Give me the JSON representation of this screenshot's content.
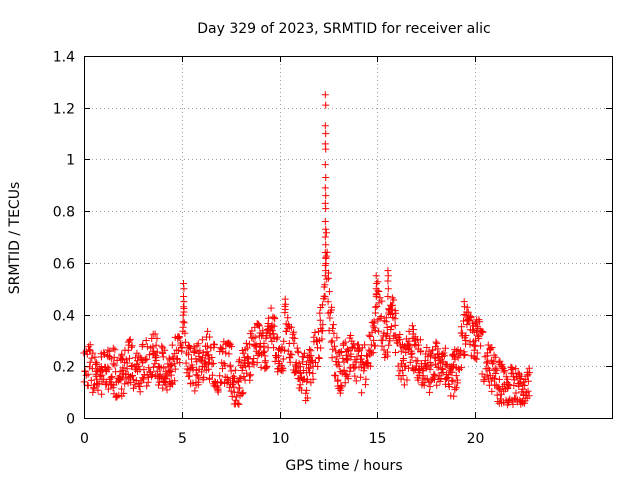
{
  "chart_data": {
    "type": "scatter",
    "title": "Day 329 of 2023, SRMTID for receiver alic",
    "xlabel": "GPS time / hours",
    "ylabel": "SRMTID / TECUs",
    "xlim": [
      0,
      27
    ],
    "ylim": [
      0,
      1.4
    ],
    "grid": true,
    "legend": "none",
    "marker": "plus",
    "color": "#ff0000",
    "x_ticks": [
      0,
      5,
      10,
      15,
      20
    ],
    "x_tick_labels": [
      "0",
      "5",
      "10",
      "15",
      "20"
    ],
    "y_ticks": [
      0,
      0.2,
      0.4,
      0.6,
      0.8,
      1.0,
      1.2,
      1.4
    ],
    "y_tick_labels": [
      "0",
      "0.2",
      "0.4",
      "0.6",
      "0.8",
      "1",
      "1.2",
      "1.4"
    ],
    "series": [
      {
        "name": "SRMTID",
        "anchors_x": [
          0.0,
          0.3,
          0.6,
          0.9,
          1.2,
          1.5,
          1.8,
          2.1,
          2.4,
          2.7,
          3.0,
          3.3,
          3.6,
          3.9,
          4.2,
          4.5,
          4.8,
          5.0,
          5.1,
          5.2,
          5.4,
          5.7,
          6.0,
          6.3,
          6.6,
          6.9,
          7.2,
          7.5,
          7.8,
          8.1,
          8.4,
          8.7,
          9.0,
          9.3,
          9.6,
          9.9,
          10.2,
          10.3,
          10.5,
          10.8,
          11.1,
          11.4,
          11.7,
          12.0,
          12.2,
          12.3,
          12.4,
          12.5,
          12.6,
          12.8,
          13.1,
          13.4,
          13.7,
          14.0,
          14.3,
          14.6,
          14.9,
          15.0,
          15.2,
          15.4,
          15.6,
          15.8,
          16.1,
          16.4,
          16.7,
          17.0,
          17.3,
          17.6,
          17.9,
          18.2,
          18.5,
          18.8,
          19.1,
          19.4,
          19.6,
          19.9,
          20.2,
          20.5,
          20.8,
          21.1,
          21.4,
          21.7,
          22.0,
          22.3,
          22.6,
          22.8
        ],
        "anchors_y": [
          0.18,
          0.2,
          0.15,
          0.17,
          0.2,
          0.18,
          0.16,
          0.19,
          0.22,
          0.18,
          0.2,
          0.22,
          0.25,
          0.2,
          0.17,
          0.2,
          0.24,
          0.3,
          0.38,
          0.28,
          0.22,
          0.18,
          0.22,
          0.26,
          0.2,
          0.18,
          0.22,
          0.2,
          0.1,
          0.18,
          0.22,
          0.28,
          0.3,
          0.24,
          0.35,
          0.25,
          0.2,
          0.38,
          0.32,
          0.22,
          0.18,
          0.15,
          0.22,
          0.3,
          0.38,
          0.45,
          0.7,
          0.45,
          0.38,
          0.25,
          0.18,
          0.22,
          0.25,
          0.2,
          0.18,
          0.25,
          0.35,
          0.45,
          0.38,
          0.28,
          0.35,
          0.4,
          0.25,
          0.2,
          0.28,
          0.25,
          0.2,
          0.18,
          0.22,
          0.2,
          0.18,
          0.15,
          0.2,
          0.3,
          0.35,
          0.28,
          0.3,
          0.22,
          0.2,
          0.15,
          0.12,
          0.1,
          0.12,
          0.1,
          0.08,
          0.12
        ],
        "spread": 0.09,
        "step_hours": 0.055,
        "peaks": [
          {
            "x": 12.35,
            "values": [
              1.25,
              1.21,
              1.13,
              1.1,
              1.06,
              1.04,
              0.98,
              0.93,
              0.89,
              0.86,
              0.83,
              0.81,
              0.76,
              0.73,
              0.7,
              0.67,
              0.64,
              0.62,
              0.59,
              0.57,
              0.55
            ]
          },
          {
            "x": 5.1,
            "values": [
              0.52,
              0.5,
              0.47,
              0.45,
              0.43,
              0.41
            ]
          },
          {
            "x": 15.55,
            "values": [
              0.57,
              0.55,
              0.53,
              0.5,
              0.47
            ]
          },
          {
            "x": 14.95,
            "values": [
              0.55,
              0.52,
              0.5,
              0.48
            ]
          },
          {
            "x": 19.45,
            "values": [
              0.45,
              0.43,
              0.4
            ]
          },
          {
            "x": 10.3,
            "values": [
              0.46,
              0.44,
              0.42
            ]
          }
        ]
      }
    ]
  }
}
